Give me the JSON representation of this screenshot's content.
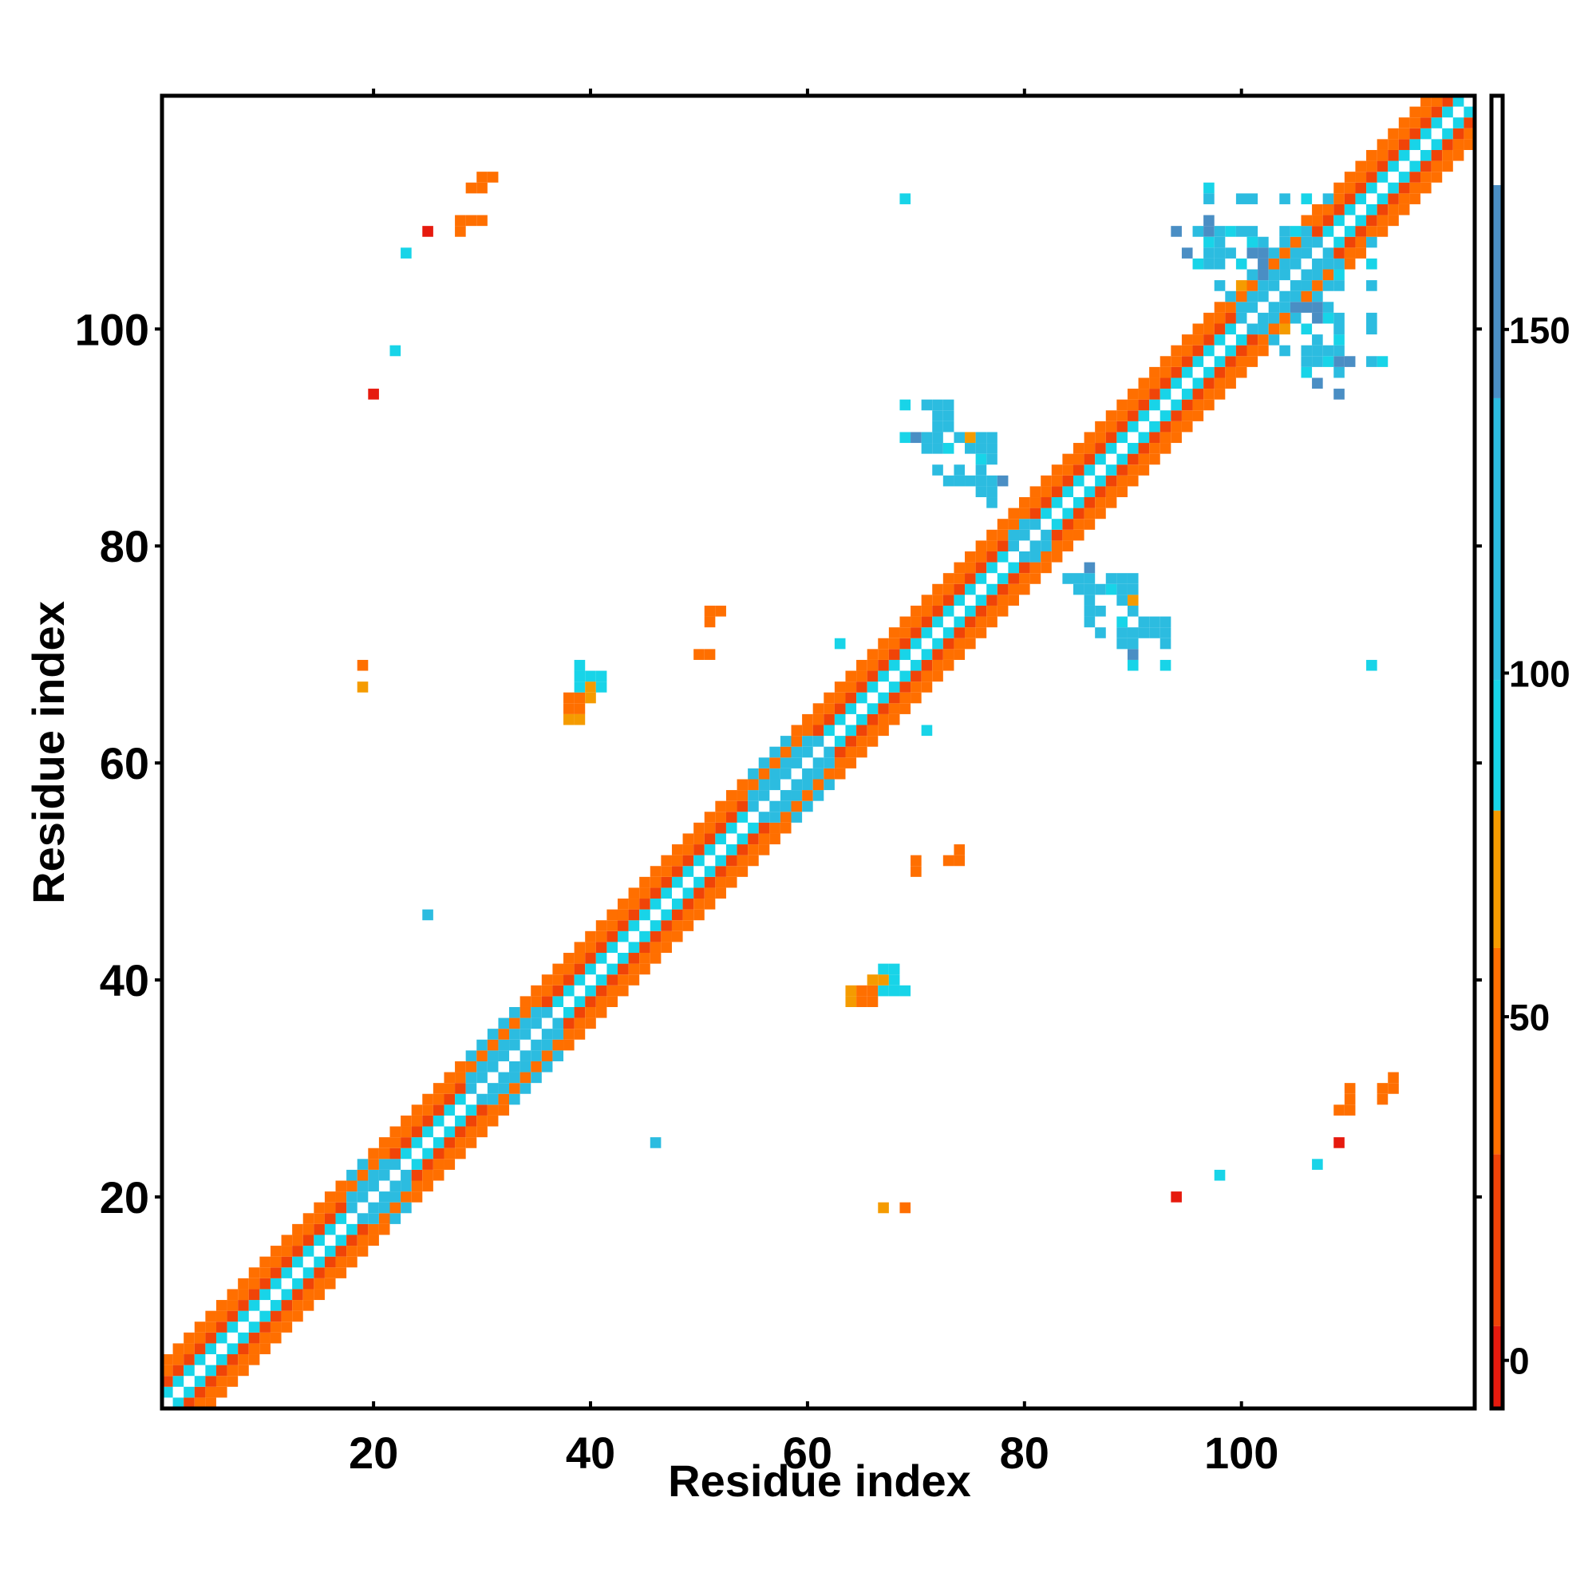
{
  "chart_data": {
    "type": "heatmap",
    "xlabel": "Residue index",
    "ylabel": "Residue index",
    "xlim": [
      0.5,
      121.5
    ],
    "ylim": [
      0.5,
      121.5
    ],
    "x_ticks": [
      20,
      40,
      60,
      80,
      100
    ],
    "y_ticks": [
      20,
      40,
      60,
      80,
      100
    ],
    "colorbar": {
      "range": [
        -7,
        184
      ],
      "ticks": [
        0,
        50,
        100,
        150
      ],
      "bands": [
        {
          "from": -7,
          "to": 5,
          "color": "#e61a0e"
        },
        {
          "from": 5,
          "to": 30,
          "color": "#f04408"
        },
        {
          "from": 30,
          "to": 60,
          "color": "#ff6f00"
        },
        {
          "from": 60,
          "to": 80,
          "color": "#f59b00"
        },
        {
          "from": 80,
          "to": 99,
          "color": "#18d4e8"
        },
        {
          "from": 99,
          "to": 140,
          "color": "#2cbce0"
        },
        {
          "from": 140,
          "to": 171,
          "color": "#4a8ec4"
        },
        {
          "from": 171,
          "to": 184,
          "color": "#ffffff"
        }
      ]
    },
    "diagonal_structure": {
      "helix_offset_values": {
        "1": 90,
        "2": 20,
        "3": 45,
        "4": 35
      },
      "strand_offset_values": {
        "1": 100,
        "2": 120,
        "3": 30,
        "4": 110
      },
      "strand_segments": [
        [
          18,
          23
        ],
        [
          29,
          37
        ],
        [
          55,
          62
        ],
        [
          79,
          82
        ],
        [
          100,
          108
        ]
      ]
    },
    "off_diagonal_contacts": [
      {
        "x": 19,
        "y": 69,
        "v": 70
      },
      {
        "x": 19,
        "y": 67,
        "v": 70
      },
      {
        "x": 20,
        "y": 94,
        "v": 0
      },
      {
        "x": 22,
        "y": 98,
        "v": 90
      },
      {
        "x": 23,
        "y": 107,
        "v": 90
      },
      {
        "x": 25,
        "y": 109,
        "v": 20
      },
      {
        "x": 25,
        "y": 46,
        "v": 120
      },
      {
        "x": 28,
        "y": 110,
        "v": 50
      },
      {
        "x": 29,
        "y": 110,
        "v": 50
      },
      {
        "x": 30,
        "y": 110,
        "v": 50
      },
      {
        "x": 29,
        "y": 113,
        "v": 50
      },
      {
        "x": 30,
        "y": 113,
        "v": 50
      },
      {
        "x": 30,
        "y": 114,
        "v": 50
      },
      {
        "x": 31,
        "y": 114,
        "v": 50
      },
      {
        "x": 38,
        "y": 65,
        "v": 50
      },
      {
        "x": 39,
        "y": 65,
        "v": 50
      },
      {
        "x": 39,
        "y": 66,
        "v": 50
      },
      {
        "x": 40,
        "y": 66,
        "v": 50
      },
      {
        "x": 38,
        "y": 64,
        "v": 60
      },
      {
        "x": 39,
        "y": 64,
        "v": 60
      },
      {
        "x": 39,
        "y": 67,
        "v": 90
      },
      {
        "x": 40,
        "y": 67,
        "v": 90
      },
      {
        "x": 41,
        "y": 67,
        "v": 90
      },
      {
        "x": 39,
        "y": 68,
        "v": 90
      },
      {
        "x": 46,
        "y": 25,
        "v": 120
      },
      {
        "x": 50,
        "y": 70,
        "v": 30
      },
      {
        "x": 51,
        "y": 70,
        "v": 30
      },
      {
        "x": 51,
        "y": 74,
        "v": 40
      },
      {
        "x": 52,
        "y": 74,
        "v": 40
      },
      {
        "x": 51,
        "y": 73,
        "v": 40
      },
      {
        "x": 63,
        "y": 71,
        "v": 90
      },
      {
        "x": 65,
        "y": 38,
        "v": 50
      },
      {
        "x": 66,
        "y": 38,
        "v": 50
      },
      {
        "x": 65,
        "y": 39,
        "v": 50
      },
      {
        "x": 66,
        "y": 40,
        "v": 70
      },
      {
        "x": 67,
        "y": 40,
        "v": 70
      },
      {
        "x": 68,
        "y": 39,
        "v": 90
      },
      {
        "x": 69,
        "y": 39,
        "v": 90
      },
      {
        "x": 68,
        "y": 40,
        "v": 90
      },
      {
        "x": 68,
        "y": 41,
        "v": 90
      },
      {
        "x": 67,
        "y": 19,
        "v": 70
      },
      {
        "x": 69,
        "y": 19,
        "v": 50
      },
      {
        "x": 70,
        "y": 50,
        "v": 40
      },
      {
        "x": 70,
        "y": 51,
        "v": 40
      },
      {
        "x": 73,
        "y": 51,
        "v": 40
      },
      {
        "x": 74,
        "y": 51,
        "v": 40
      },
      {
        "x": 74,
        "y": 52,
        "v": 40
      },
      {
        "x": 71,
        "y": 63,
        "v": 90
      },
      {
        "x": 69,
        "y": 112,
        "v": 90
      },
      {
        "x": 69,
        "y": 93,
        "v": 90
      },
      {
        "x": 69,
        "y": 90,
        "v": 90
      },
      {
        "x": 70,
        "y": 90,
        "v": 120
      },
      {
        "x": 71,
        "y": 93,
        "v": 120
      },
      {
        "x": 72,
        "y": 93,
        "v": 120
      },
      {
        "x": 72,
        "y": 92,
        "v": 120
      },
      {
        "x": 72,
        "y": 91,
        "v": 120
      },
      {
        "x": 71,
        "y": 90,
        "v": 120
      },
      {
        "x": 71,
        "y": 89,
        "v": 120
      },
      {
        "x": 72,
        "y": 89,
        "v": 120
      },
      {
        "x": 73,
        "y": 89,
        "v": 120
      },
      {
        "x": 74,
        "y": 90,
        "v": 120
      },
      {
        "x": 75,
        "y": 90,
        "v": 70
      },
      {
        "x": 76,
        "y": 89,
        "v": 120
      },
      {
        "x": 76,
        "y": 88,
        "v": 120
      },
      {
        "x": 72,
        "y": 87,
        "v": 120
      },
      {
        "x": 73,
        "y": 86,
        "v": 120
      },
      {
        "x": 74,
        "y": 86,
        "v": 120
      },
      {
        "x": 75,
        "y": 86,
        "v": 120
      },
      {
        "x": 76,
        "y": 86,
        "v": 120
      },
      {
        "x": 76,
        "y": 87,
        "v": 120
      },
      {
        "x": 77,
        "y": 86,
        "v": 120
      },
      {
        "x": 77,
        "y": 85,
        "v": 90
      },
      {
        "x": 76,
        "y": 85,
        "v": 150
      },
      {
        "x": 77,
        "y": 84,
        "v": 120
      },
      {
        "x": 84,
        "y": 77,
        "v": 120
      },
      {
        "x": 85,
        "y": 77,
        "v": 120
      },
      {
        "x": 86,
        "y": 77,
        "v": 120
      },
      {
        "x": 86,
        "y": 78,
        "v": 150
      },
      {
        "x": 85,
        "y": 76,
        "v": 120
      },
      {
        "x": 86,
        "y": 75,
        "v": 120
      },
      {
        "x": 87,
        "y": 76,
        "v": 120
      },
      {
        "x": 87,
        "y": 74,
        "v": 120
      },
      {
        "x": 88,
        "y": 77,
        "v": 120
      },
      {
        "x": 89,
        "y": 77,
        "v": 120
      },
      {
        "x": 90,
        "y": 77,
        "v": 120
      },
      {
        "x": 90,
        "y": 76,
        "v": 120
      },
      {
        "x": 88,
        "y": 76,
        "v": 90
      },
      {
        "x": 89,
        "y": 75,
        "v": 120
      },
      {
        "x": 90,
        "y": 74,
        "v": 120
      },
      {
        "x": 91,
        "y": 73,
        "v": 120
      },
      {
        "x": 92,
        "y": 73,
        "v": 120
      },
      {
        "x": 93,
        "y": 73,
        "v": 120
      },
      {
        "x": 93,
        "y": 72,
        "v": 120
      },
      {
        "x": 90,
        "y": 72,
        "v": 120
      },
      {
        "x": 89,
        "y": 73,
        "v": 90
      },
      {
        "x": 90,
        "y": 70,
        "v": 150
      },
      {
        "x": 90,
        "y": 69,
        "v": 90
      },
      {
        "x": 93,
        "y": 69,
        "v": 90
      },
      {
        "x": 112,
        "y": 69,
        "v": 90
      },
      {
        "x": 94,
        "y": 20,
        "v": 0
      },
      {
        "x": 98,
        "y": 22,
        "v": 90
      },
      {
        "x": 107,
        "y": 23,
        "v": 90
      },
      {
        "x": 109,
        "y": 25,
        "v": 0
      },
      {
        "x": 109,
        "y": 28,
        "v": 40
      },
      {
        "x": 110,
        "y": 28,
        "v": 40
      },
      {
        "x": 110,
        "y": 29,
        "v": 40
      },
      {
        "x": 110,
        "y": 30,
        "v": 40
      },
      {
        "x": 113,
        "y": 29,
        "v": 40
      },
      {
        "x": 113,
        "y": 30,
        "v": 40
      },
      {
        "x": 114,
        "y": 30,
        "v": 40
      },
      {
        "x": 114,
        "y": 31,
        "v": 40
      },
      {
        "x": 97,
        "y": 113,
        "v": 90
      },
      {
        "x": 97,
        "y": 112,
        "v": 120
      },
      {
        "x": 100,
        "y": 112,
        "v": 120
      },
      {
        "x": 101,
        "y": 112,
        "v": 120
      },
      {
        "x": 104,
        "y": 112,
        "v": 120
      },
      {
        "x": 106,
        "y": 112,
        "v": 90
      },
      {
        "x": 108,
        "y": 112,
        "v": 120
      },
      {
        "x": 94,
        "y": 109,
        "v": 150
      },
      {
        "x": 96,
        "y": 109,
        "v": 120
      },
      {
        "x": 97,
        "y": 109,
        "v": 120
      },
      {
        "x": 98,
        "y": 109,
        "v": 120
      },
      {
        "x": 99,
        "y": 109,
        "v": 90
      },
      {
        "x": 100,
        "y": 109,
        "v": 120
      },
      {
        "x": 101,
        "y": 109,
        "v": 120
      },
      {
        "x": 97,
        "y": 108,
        "v": 120
      },
      {
        "x": 98,
        "y": 108,
        "v": 120
      },
      {
        "x": 101,
        "y": 108,
        "v": 90
      },
      {
        "x": 102,
        "y": 108,
        "v": 150
      },
      {
        "x": 101,
        "y": 107,
        "v": 150
      },
      {
        "x": 102,
        "y": 107,
        "v": 150
      },
      {
        "x": 102,
        "y": 106,
        "v": 150
      },
      {
        "x": 104,
        "y": 109,
        "v": 90
      },
      {
        "x": 105,
        "y": 109,
        "v": 90
      },
      {
        "x": 109,
        "y": 106,
        "v": 120
      },
      {
        "x": 109,
        "y": 104,
        "v": 120
      },
      {
        "x": 109,
        "y": 101,
        "v": 120
      },
      {
        "x": 109,
        "y": 100,
        "v": 120
      },
      {
        "x": 108,
        "y": 101,
        "v": 90
      },
      {
        "x": 107,
        "y": 102,
        "v": 150
      },
      {
        "x": 106,
        "y": 102,
        "v": 150
      },
      {
        "x": 105,
        "y": 102,
        "v": 150
      },
      {
        "x": 108,
        "y": 102,
        "v": 120
      },
      {
        "x": 107,
        "y": 99,
        "v": 120
      },
      {
        "x": 107,
        "y": 98,
        "v": 120
      },
      {
        "x": 106,
        "y": 100,
        "v": 90
      },
      {
        "x": 106,
        "y": 98,
        "v": 120
      },
      {
        "x": 106,
        "y": 97,
        "v": 120
      },
      {
        "x": 107,
        "y": 97,
        "v": 120
      },
      {
        "x": 108,
        "y": 97,
        "v": 90
      },
      {
        "x": 106,
        "y": 96,
        "v": 90
      },
      {
        "x": 107,
        "y": 95,
        "v": 150
      },
      {
        "x": 109,
        "y": 97,
        "v": 150
      },
      {
        "x": 110,
        "y": 97,
        "v": 150
      },
      {
        "x": 104,
        "y": 100,
        "v": 70
      },
      {
        "x": 103,
        "y": 99,
        "v": 120
      },
      {
        "x": 104,
        "y": 98,
        "v": 120
      }
    ]
  }
}
